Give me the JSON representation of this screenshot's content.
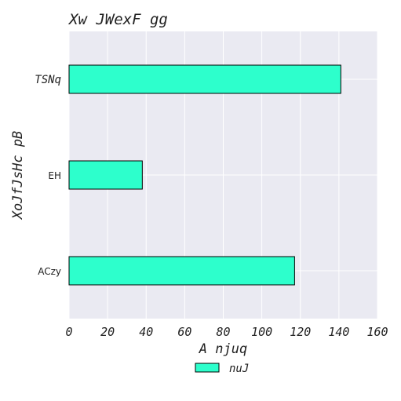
{
  "chart_data": {
    "type": "bar",
    "orientation": "horizontal",
    "title": "Xw JWexF gg",
    "xlabel": "A njuq",
    "ylabel": "XoJfJsHc pB",
    "categories": [
      "TSNq",
      "EH",
      "ACzy"
    ],
    "series": [
      {
        "name": "nuJ",
        "values": [
          141,
          38,
          117
        ],
        "color": "#2dffcc"
      }
    ],
    "xlim": [
      0,
      160
    ],
    "xticks": [
      "0",
      "20",
      "40",
      "60",
      "80",
      "100",
      "120",
      "140",
      "160"
    ],
    "grid": true,
    "legend_position": "bottom-center",
    "colors": {
      "plot_background": "#eaeaf2",
      "grid": "#ffffff",
      "bar_edge": "#000000"
    }
  }
}
